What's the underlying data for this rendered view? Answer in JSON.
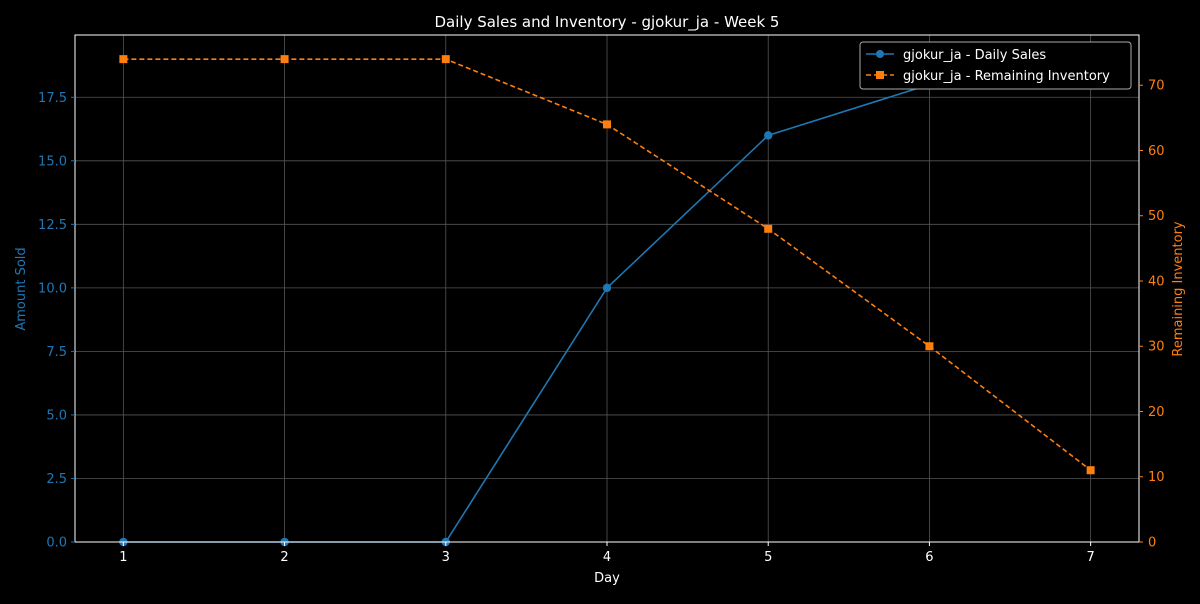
{
  "chart_data": {
    "type": "line",
    "title": "Daily Sales and Inventory - gjokur_ja - Week 5",
    "xlabel": "Day",
    "ylabel_left": "Amount Sold",
    "ylabel_right": "Remaining Inventory",
    "x": [
      1,
      2,
      3,
      4,
      5,
      6,
      7
    ],
    "xlim": [
      0.7,
      7.3
    ],
    "ylim_left": [
      0,
      19.95
    ],
    "ylim_right": [
      0,
      77.7
    ],
    "left_ticks": [
      "0.0",
      "2.5",
      "5.0",
      "7.5",
      "10.0",
      "12.5",
      "15.0",
      "17.5"
    ],
    "right_ticks": [
      "0",
      "10",
      "20",
      "30",
      "40",
      "50",
      "60",
      "70"
    ],
    "x_ticks": [
      "1",
      "2",
      "3",
      "4",
      "5",
      "6",
      "7"
    ],
    "grid": true,
    "legend_position": "top-right",
    "series": [
      {
        "name": "gjokur_ja - Daily Sales",
        "axis": "left",
        "color": "#1f77b4",
        "marker": "circle",
        "line_style": "solid",
        "values": [
          0,
          0,
          0,
          10,
          16,
          18,
          19
        ]
      },
      {
        "name": "gjokur_ja - Remaining Inventory",
        "axis": "right",
        "color": "#ff7f0e",
        "marker": "square",
        "line_style": "dashed",
        "values": [
          74,
          74,
          74,
          64,
          48,
          30,
          11
        ]
      }
    ],
    "colors": {
      "background": "#000000",
      "text": "#ffffff",
      "grid": "#555555",
      "left_axis": "#1f77b4",
      "right_axis": "#ff7f0e"
    }
  }
}
